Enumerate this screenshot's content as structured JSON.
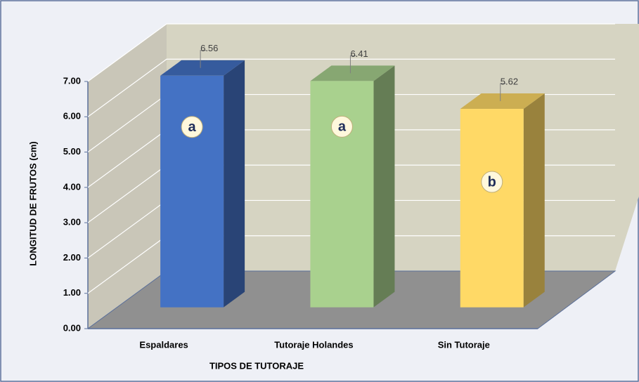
{
  "chart_data": {
    "type": "bar3d",
    "y_label": "LONGITUD DE FRUTOS (cm)",
    "x_label": "TIPOS DE TUTORAJE",
    "categories": [
      "Espaldares",
      "Tutoraje Holandes",
      "Sin Tutoraje"
    ],
    "values": [
      6.56,
      6.41,
      5.62
    ],
    "colors": [
      "#4472c4",
      "#a9d18e",
      "#ffd966"
    ],
    "annotations": [
      "a",
      "a",
      "b"
    ],
    "ylim": [
      0,
      7
    ],
    "yticks": [
      {
        "value": 0,
        "label": "0.00"
      },
      {
        "value": 1,
        "label": "1.00"
      },
      {
        "value": 2,
        "label": "2.00"
      },
      {
        "value": 3,
        "label": "3.00"
      },
      {
        "value": 4,
        "label": "4.00"
      },
      {
        "value": 5,
        "label": "5.00"
      },
      {
        "value": 6,
        "label": "6.00"
      },
      {
        "value": 7,
        "label": "7.00"
      }
    ],
    "grid": true
  }
}
